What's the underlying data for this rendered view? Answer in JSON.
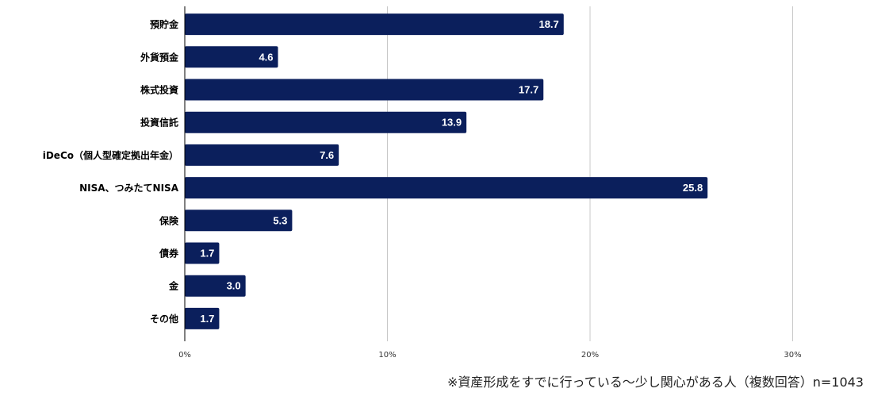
{
  "chart_data": {
    "type": "bar",
    "orientation": "horizontal",
    "categories": [
      "預貯金",
      "外貨預金",
      "株式投資",
      "投資信託",
      "iDeCo（個人型確定拠出年金）",
      "NISA、つみたてNISA",
      "保険",
      "債券",
      "金",
      "その他"
    ],
    "values": [
      18.7,
      4.6,
      17.7,
      13.9,
      7.6,
      25.8,
      5.3,
      1.7,
      3.0,
      1.7
    ],
    "value_labels": [
      "18.7",
      "4.6",
      "17.7",
      "13.9",
      "7.6",
      "25.8",
      "5.3",
      "1.7",
      "3.0",
      "1.7"
    ],
    "xlim": [
      0,
      30
    ],
    "xticks": [
      0,
      10,
      20,
      30
    ],
    "xtick_labels": [
      "0%",
      "10%",
      "20%",
      "30%"
    ],
    "grid": true,
    "bar_color": "#0b1f5c",
    "title": "",
    "xlabel": "",
    "ylabel": ""
  },
  "footnote": "※資産形成をすでに行っている～少し関心がある人（複数回答）n=1043"
}
